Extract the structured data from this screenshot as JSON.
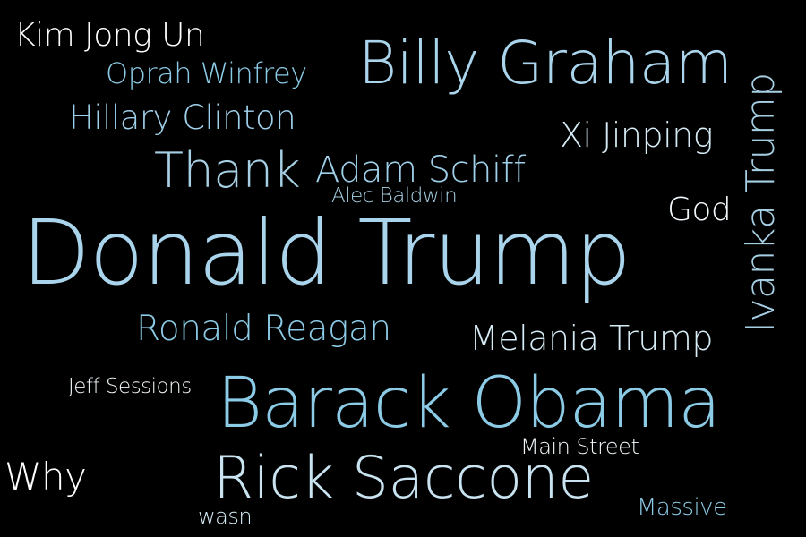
{
  "background_color": "#000000",
  "words": [
    {
      "text": "Kim Jong Un",
      "color": "#ffffff"
    },
    {
      "text": "Oprah Winfrey",
      "color": "#8ccbe6"
    },
    {
      "text": "Billy Graham",
      "color": "#a9d4eb"
    },
    {
      "text": "Hillary Clinton",
      "color": "#9fd0ea"
    },
    {
      "text": "Xi Jinping",
      "color": "#d6ecf6"
    },
    {
      "text": "Thank",
      "color": "#a7cfe3"
    },
    {
      "text": "Adam Schiff",
      "color": "#9fd0ea"
    },
    {
      "text": "Alec Baldwin",
      "color": "#a7cfe3"
    },
    {
      "text": "God",
      "color": "#f2f8fb"
    },
    {
      "text": "Donald Trump",
      "color": "#a9d4eb"
    },
    {
      "text": "Ivanka Trump",
      "color": "#a7cfe3"
    },
    {
      "text": "Ronald Reagan",
      "color": "#8ccbe6"
    },
    {
      "text": "Melania Trump",
      "color": "#d6ecf6"
    },
    {
      "text": "Jeff Sessions",
      "color": "#f2f8fb"
    },
    {
      "text": "Barack Obama",
      "color": "#8ccbe6"
    },
    {
      "text": "Main Street",
      "color": "#f2f8fb"
    },
    {
      "text": "Why",
      "color": "#ffffff"
    },
    {
      "text": "Rick Saccone",
      "color": "#c9e3f1"
    },
    {
      "text": "wasn",
      "color": "#d6ecf6"
    },
    {
      "text": "Massive",
      "color": "#8ccbe6"
    }
  ]
}
